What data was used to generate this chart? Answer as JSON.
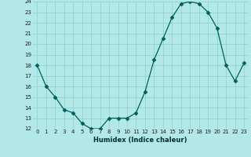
{
  "x": [
    0,
    1,
    2,
    3,
    4,
    5,
    6,
    7,
    8,
    9,
    10,
    11,
    12,
    13,
    14,
    15,
    16,
    17,
    18,
    19,
    20,
    21,
    22,
    23
  ],
  "y": [
    18,
    16,
    15,
    13.8,
    13.5,
    12.5,
    12.0,
    12.0,
    13.0,
    13.0,
    13.0,
    13.5,
    15.5,
    18.5,
    20.5,
    22.5,
    23.8,
    24.0,
    23.8,
    23.0,
    21.5,
    18.0,
    16.5,
    18.2
  ],
  "xlabel": "Humidex (Indice chaleur)",
  "ylim": [
    12,
    24
  ],
  "xlim_min": -0.5,
  "xlim_max": 23.5,
  "yticks": [
    12,
    13,
    14,
    15,
    16,
    17,
    18,
    19,
    20,
    21,
    22,
    23,
    24
  ],
  "xticks": [
    0,
    1,
    2,
    3,
    4,
    5,
    6,
    7,
    8,
    9,
    10,
    11,
    12,
    13,
    14,
    15,
    16,
    17,
    18,
    19,
    20,
    21,
    22,
    23
  ],
  "line_color": "#005f5f",
  "marker_color": "#005f5f",
  "bg_color": "#b2e8e8",
  "grid_color": "#8ecece",
  "tick_fontsize": 5,
  "xlabel_fontsize": 6,
  "marker_size": 2.5,
  "linewidth": 0.9
}
